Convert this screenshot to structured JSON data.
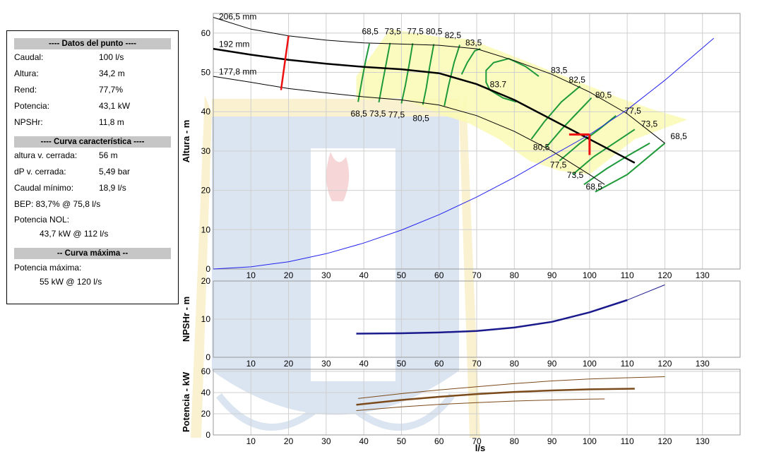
{
  "info_panel": {
    "punto": {
      "header": "---- Datos del punto ----",
      "rows": [
        {
          "label": "Caudal:",
          "value": "100 l/s"
        },
        {
          "label": "Altura:",
          "value": "34,2 m"
        },
        {
          "label": "Rend:",
          "value": "77,7%"
        },
        {
          "label": "Potencia:",
          "value": "43,1 kW"
        },
        {
          "label": "NPSHr:",
          "value": "11,8 m"
        }
      ]
    },
    "curva": {
      "header": "---- Curva característica ----",
      "rows": [
        {
          "label": "altura v. cerrada:",
          "value": "56 m"
        },
        {
          "label": "dP v. cerrada:",
          "value": "5,49 bar"
        },
        {
          "label": "Caudal mínimo:",
          "value": "18,9 l/s"
        }
      ],
      "bep": "BEP:  83,7% @ 75,8 l/s",
      "nol_label": "Potencia NOL:",
      "nol_value": "43,7 kW @ 112 l/s"
    },
    "maxima": {
      "header": "-- Curva máxima --",
      "label": "Potencia máxima:",
      "value": "55 kW @ 120 l/s"
    }
  },
  "chart_data": {
    "type": "line",
    "colors": {
      "head": "#000000",
      "system": "#2222ee",
      "efficiency": "#1e9a3a",
      "npsh": "#1a1a8c",
      "power": "#7a4a1a",
      "operating_point": "#ee1111",
      "highlight": "#fafab4",
      "grid": "#cfcfcf"
    },
    "panels": [
      {
        "id": "head",
        "ylabel": "Altura - m",
        "xlim": [
          0,
          140
        ],
        "ylim": [
          0,
          65
        ],
        "x_ticks": [
          10,
          20,
          30,
          40,
          50,
          60,
          70,
          80,
          90,
          100,
          110,
          120,
          130
        ],
        "y_ticks": [
          0,
          10,
          20,
          30,
          40,
          50,
          60
        ],
        "x_tick_labels": [
          "10",
          "20",
          "30",
          "40",
          "50",
          "60",
          "70",
          "80",
          "90",
          "100",
          "110",
          "120",
          "130"
        ],
        "y_tick_labels": [
          "0",
          "10",
          "20",
          "30",
          "40",
          "50",
          "60"
        ],
        "series": [
          {
            "name": "206,5 mm",
            "weight": "thin",
            "x": [
              0,
              10,
              20,
              30,
              40,
              50,
              60,
              70,
              80,
              90,
              100,
              110,
              120
            ],
            "y": [
              64,
              61,
              59.3,
              58.2,
              57.5,
              57.2,
              56.9,
              56,
              53,
              49.5,
              45,
              39.5,
              32
            ]
          },
          {
            "name": "192 mm",
            "weight": "bold",
            "x": [
              0,
              10,
              20,
              30,
              40,
              50,
              60,
              70,
              80,
              90,
              100,
              112
            ],
            "y": [
              56,
              54.5,
              53.2,
              52.2,
              51.4,
              50.8,
              49.8,
              47,
              43,
              38,
              33,
              27
            ]
          },
          {
            "name": "177,8 mm",
            "weight": "thin",
            "x": [
              0,
              10,
              20,
              30,
              40,
              50,
              60,
              70,
              80,
              90,
              100,
              104
            ],
            "y": [
              49,
              47.5,
              45.9,
              44.8,
              43.8,
              43,
              41.7,
              39,
              35,
              30,
              24,
              21.5
            ]
          },
          {
            "name": "system",
            "weight": "system",
            "x": [
              0,
              10,
              20,
              30,
              40,
              50,
              60,
              70,
              80,
              90,
              100,
              110,
              120,
              133
            ],
            "y": [
              0,
              0.55,
              1.85,
              3.9,
              6.6,
              9.9,
              13.8,
              18.3,
              23.3,
              28.8,
              34.2,
              40.5,
              48,
              58.7
            ]
          }
        ],
        "efficiency_lines": [
          {
            "x": [
              38.5,
              39.5,
              40.5,
              41.5
            ],
            "y": [
              42.5,
              48,
              53,
              57.3
            ]
          },
          {
            "x": [
              44,
              45,
              46,
              47
            ],
            "y": [
              42.4,
              47.5,
              52.5,
              57.5
            ]
          },
          {
            "x": [
              50,
              51,
              52,
              53
            ],
            "y": [
              42.1,
              46.5,
              51.7,
              57.4
            ]
          },
          {
            "x": [
              55.7,
              56.6,
              57.5,
              58.6
            ],
            "y": [
              41.8,
              46,
              51.4,
              57.2
            ]
          },
          {
            "x": [
              61.4,
              62.5,
              64,
              65.5
            ],
            "y": [
              41.5,
              46.5,
              52.5,
              57
            ]
          },
          {
            "x": [
              66,
              67.5,
              69.5,
              71
            ],
            "y": [
              49.5,
              52.5,
              55.5,
              56
            ]
          },
          {
            "x": [
              80.5,
              77,
              73.5,
              72.5,
              72.5,
              74.5,
              78.5,
              83,
              86.5
            ],
            "y": [
              42.5,
              43.5,
              45.5,
              47.5,
              50.5,
              52.5,
              53.5,
              51.5,
              49
            ]
          },
          {
            "x": [
              84.5,
              88,
              92.5,
              97.5
            ],
            "y": [
              33,
              37.5,
              42.5,
              46.5
            ]
          },
          {
            "x": [
              88.5,
              92.5,
              96.5,
              100.5
            ],
            "y": [
              31,
              35.5,
              39.5,
              43.5
            ]
          },
          {
            "x": [
              92,
              97.5,
              102.5,
              107
            ],
            "y": [
              27.5,
              32,
              35.5,
              39
            ]
          },
          {
            "x": [
              95.5,
              101,
              106.5,
              112
            ],
            "y": [
              24,
              28.5,
              32,
              35.5
            ]
          },
          {
            "x": [
              98.5,
              104.5,
              110.5,
              116
            ],
            "y": [
              21.5,
              25.5,
              29,
              32
            ]
          },
          {
            "x": [
              101.5,
              110,
              120
            ],
            "y": [
              19.6,
              24,
              32
            ]
          }
        ],
        "efficiency_labels": [
          {
            "text": "68,5",
            "x": 39.5,
            "y": 59.7
          },
          {
            "text": "73,5",
            "x": 45.5,
            "y": 59.7
          },
          {
            "text": "77,5",
            "x": 51.5,
            "y": 59.7
          },
          {
            "text": "80,5",
            "x": 56.5,
            "y": 59.7
          },
          {
            "text": "82,5",
            "x": 61.5,
            "y": 58.7
          },
          {
            "text": "83,5",
            "x": 67,
            "y": 56.8
          },
          {
            "text": "83,5",
            "x": 89.7,
            "y": 49.8
          },
          {
            "text": "82,5",
            "x": 94.5,
            "y": 47.4
          },
          {
            "text": "80,5",
            "x": 101.5,
            "y": 43.5
          },
          {
            "text": "77,5",
            "x": 109.3,
            "y": 39.5
          },
          {
            "text": "73,5",
            "x": 113.7,
            "y": 36.2
          },
          {
            "text": "68,5",
            "x": 121.5,
            "y": 33
          },
          {
            "text": "68,5",
            "x": 36.5,
            "y": 38.8
          },
          {
            "text": "73,5",
            "x": 41.5,
            "y": 38.8
          },
          {
            "text": "77,5",
            "x": 46.5,
            "y": 38.5
          },
          {
            "text": "80,5",
            "x": 53,
            "y": 37.6
          },
          {
            "text": "83.7",
            "x": 73.5,
            "y": 46.2
          },
          {
            "text": "80,5",
            "x": 85,
            "y": 30.3
          },
          {
            "text": "77,5",
            "x": 89.5,
            "y": 25.8
          },
          {
            "text": "73,5",
            "x": 94,
            "y": 23.2
          },
          {
            "text": "68,5",
            "x": 99,
            "y": 20.2
          }
        ],
        "highlight_polygon": {
          "x": [
            38,
            47,
            60,
            68,
            76,
            84,
            92,
            100,
            108,
            117,
            126,
            112,
            100,
            92,
            84,
            76,
            68,
            60,
            50,
            38
          ],
          "y": [
            49,
            61,
            59,
            58.4,
            55.5,
            52.5,
            49.5,
            46.5,
            43.5,
            40.5,
            38,
            33,
            24,
            25,
            27.5,
            33,
            37,
            39.5,
            43.5,
            43
          ]
        },
        "diameter_labels": [
          {
            "text": "206,5 mm",
            "x": 1.5,
            "y": 63.5
          },
          {
            "text": "192 mm",
            "x": 1.5,
            "y": 56.5
          },
          {
            "text": "177,8 mm",
            "x": 1.5,
            "y": 49.5
          }
        ],
        "min_flow_segment": {
          "x": [
            18,
            20
          ],
          "y": [
            45.5,
            59.3
          ]
        },
        "operating_point": {
          "x": 100,
          "y": 34.2
        }
      },
      {
        "id": "npsh",
        "ylabel": "NPSHr - m",
        "xlim": [
          0,
          140
        ],
        "ylim": [
          0,
          20
        ],
        "x_ticks": [
          10,
          20,
          30,
          40,
          50,
          60,
          70,
          80,
          90,
          100,
          110,
          120,
          130
        ],
        "y_ticks": [
          0,
          10,
          20
        ],
        "x_tick_labels": [
          "10",
          "20",
          "30",
          "40",
          "50",
          "60",
          "70",
          "80",
          "90",
          "100",
          "110",
          "120",
          "130"
        ],
        "y_tick_labels": [
          "0",
          "10",
          "20"
        ],
        "series": [
          {
            "name": "npsh",
            "weight": "bold",
            "x": [
              38,
              50,
              60,
              70,
              80,
              90,
              100,
              110
            ],
            "y": [
              6.2,
              6.3,
              6.5,
              6.9,
              7.8,
              9.3,
              11.8,
              15
            ]
          },
          {
            "name": "npsh-max",
            "weight": "thin",
            "x": [
              100,
              110,
              120
            ],
            "y": [
              11.8,
              15,
              19
            ]
          }
        ]
      },
      {
        "id": "power",
        "ylabel": "Potencia - kW",
        "xlim": [
          0,
          140
        ],
        "ylim": [
          0,
          62
        ],
        "x_ticks": [
          10,
          20,
          30,
          40,
          50,
          60,
          70,
          80,
          90,
          100,
          110,
          120,
          130
        ],
        "y_ticks": [
          0,
          20,
          40,
          60
        ],
        "x_tick_labels": [
          "10",
          "20",
          "30",
          "40",
          "50",
          "60",
          "70",
          "80",
          "90",
          "100",
          "110",
          "120",
          "130"
        ],
        "y_tick_labels": [
          "0",
          "20",
          "40",
          "60"
        ],
        "series": [
          {
            "name": "206,5 mm",
            "weight": "thin",
            "x": [
              38.5,
              50,
              60,
              70,
              80,
              90,
              100,
              110,
              120
            ],
            "y": [
              34.5,
              39,
              42.5,
              45.5,
              48.5,
              51,
              52.8,
              54,
              55
            ]
          },
          {
            "name": "192 mm",
            "weight": "bold",
            "x": [
              38,
              50,
              60,
              70,
              80,
              90,
              100,
              112
            ],
            "y": [
              28.5,
              33,
              36,
              38.6,
              40.6,
              42,
              43.1,
              43.7
            ]
          },
          {
            "name": "177,8 mm",
            "weight": "thin",
            "x": [
              38,
              50,
              60,
              70,
              80,
              90,
              100,
              104
            ],
            "y": [
              23,
              26.5,
              28.8,
              30.5,
              32,
              33,
              33.8,
              34
            ]
          }
        ]
      }
    ],
    "xlabel": "l/s"
  }
}
